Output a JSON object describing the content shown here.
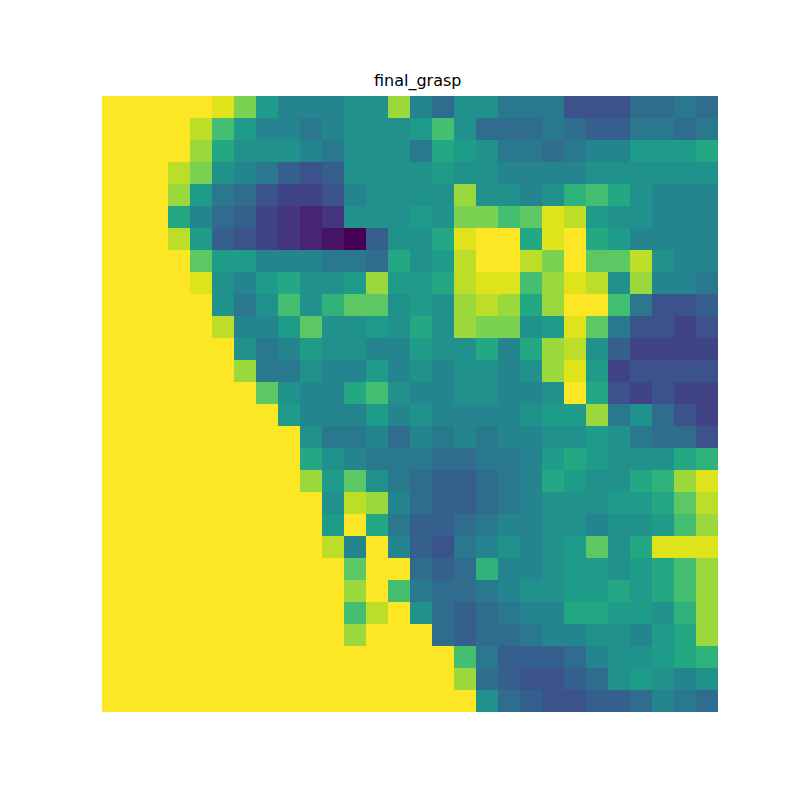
{
  "chart_data": {
    "type": "heatmap",
    "title": "final_grasp",
    "color": "Viridis",
    "tick_labels": false,
    "zlim": [
      0,
      1
    ],
    "cells": [
      [
        1,
        1,
        1,
        1,
        1,
        0.95,
        0.8,
        0.55,
        0.45,
        0.45,
        0.45,
        0.5,
        0.5,
        0.85,
        0.45,
        0.35,
        0.5,
        0.5,
        0.4,
        0.4,
        0.4,
        0.25,
        0.25,
        0.25,
        0.35,
        0.35,
        0.4,
        0.35
      ],
      [
        1,
        1,
        1,
        1,
        0.9,
        0.7,
        0.55,
        0.45,
        0.45,
        0.4,
        0.45,
        0.5,
        0.5,
        0.5,
        0.55,
        0.7,
        0.5,
        0.35,
        0.35,
        0.35,
        0.4,
        0.35,
        0.3,
        0.3,
        0.4,
        0.4,
        0.35,
        0.4
      ],
      [
        1,
        1,
        1,
        1,
        0.85,
        0.6,
        0.5,
        0.5,
        0.5,
        0.45,
        0.4,
        0.5,
        0.5,
        0.5,
        0.4,
        0.6,
        0.55,
        0.5,
        0.4,
        0.4,
        0.35,
        0.4,
        0.45,
        0.45,
        0.55,
        0.55,
        0.55,
        0.6
      ],
      [
        1,
        1,
        1,
        0.9,
        0.8,
        0.5,
        0.45,
        0.4,
        0.3,
        0.25,
        0.3,
        0.5,
        0.5,
        0.5,
        0.5,
        0.55,
        0.5,
        0.5,
        0.45,
        0.45,
        0.45,
        0.45,
        0.5,
        0.5,
        0.5,
        0.5,
        0.5,
        0.5
      ],
      [
        1,
        1,
        1,
        0.85,
        0.55,
        0.4,
        0.35,
        0.25,
        0.2,
        0.2,
        0.25,
        0.45,
        0.5,
        0.5,
        0.5,
        0.5,
        0.85,
        0.5,
        0.5,
        0.45,
        0.5,
        0.65,
        0.7,
        0.6,
        0.5,
        0.45,
        0.45,
        0.45
      ],
      [
        1,
        1,
        1,
        0.6,
        0.45,
        0.35,
        0.3,
        0.2,
        0.15,
        0.1,
        0.15,
        0.5,
        0.5,
        0.5,
        0.55,
        0.5,
        0.8,
        0.8,
        0.7,
        0.75,
        0.95,
        0.9,
        0.55,
        0.5,
        0.5,
        0.45,
        0.45,
        0.45
      ],
      [
        1,
        1,
        1,
        0.9,
        0.55,
        0.3,
        0.25,
        0.2,
        0.15,
        0.1,
        0.05,
        0.0,
        0.3,
        0.5,
        0.5,
        0.6,
        0.95,
        1,
        1,
        0.6,
        0.95,
        1,
        0.6,
        0.55,
        0.45,
        0.45,
        0.45,
        0.45
      ],
      [
        1,
        1,
        1,
        1,
        0.75,
        0.55,
        0.55,
        0.45,
        0.45,
        0.45,
        0.4,
        0.4,
        0.35,
        0.6,
        0.5,
        0.55,
        0.9,
        1,
        1,
        0.9,
        0.8,
        1,
        0.75,
        0.75,
        0.9,
        0.5,
        0.45,
        0.45
      ],
      [
        1,
        1,
        1,
        1,
        0.95,
        0.5,
        0.45,
        0.55,
        0.6,
        0.5,
        0.5,
        0.55,
        0.85,
        0.55,
        0.55,
        0.6,
        0.9,
        0.95,
        0.95,
        0.7,
        0.85,
        0.95,
        0.9,
        0.5,
        0.85,
        0.45,
        0.45,
        0.4
      ],
      [
        1,
        1,
        1,
        1,
        1,
        0.5,
        0.4,
        0.5,
        0.7,
        0.5,
        0.65,
        0.75,
        0.75,
        0.5,
        0.55,
        0.5,
        0.85,
        0.9,
        0.85,
        0.6,
        0.85,
        1,
        1,
        0.7,
        0.4,
        0.25,
        0.25,
        0.3
      ],
      [
        1,
        1,
        1,
        1,
        1,
        0.9,
        0.45,
        0.45,
        0.55,
        0.75,
        0.5,
        0.5,
        0.55,
        0.5,
        0.6,
        0.5,
        0.85,
        0.8,
        0.8,
        0.5,
        0.55,
        0.95,
        0.75,
        0.4,
        0.25,
        0.25,
        0.2,
        0.25
      ],
      [
        1,
        1,
        1,
        1,
        1,
        1,
        0.5,
        0.4,
        0.45,
        0.55,
        0.5,
        0.5,
        0.45,
        0.45,
        0.55,
        0.5,
        0.5,
        0.6,
        0.45,
        0.6,
        0.85,
        0.9,
        0.5,
        0.3,
        0.2,
        0.2,
        0.2,
        0.2
      ],
      [
        1,
        1,
        1,
        1,
        1,
        1,
        0.85,
        0.4,
        0.4,
        0.5,
        0.45,
        0.45,
        0.55,
        0.45,
        0.5,
        0.45,
        0.5,
        0.5,
        0.45,
        0.5,
        0.85,
        0.95,
        0.55,
        0.2,
        0.25,
        0.25,
        0.25,
        0.25
      ],
      [
        1,
        1,
        1,
        1,
        1,
        1,
        1,
        0.75,
        0.5,
        0.45,
        0.45,
        0.6,
        0.7,
        0.5,
        0.45,
        0.45,
        0.5,
        0.5,
        0.45,
        0.45,
        0.5,
        1,
        0.6,
        0.25,
        0.2,
        0.25,
        0.2,
        0.2
      ],
      [
        1,
        1,
        1,
        1,
        1,
        1,
        1,
        1,
        0.55,
        0.45,
        0.45,
        0.45,
        0.55,
        0.45,
        0.5,
        0.45,
        0.45,
        0.45,
        0.45,
        0.5,
        0.55,
        0.55,
        0.85,
        0.4,
        0.5,
        0.35,
        0.25,
        0.2
      ],
      [
        1,
        1,
        1,
        1,
        1,
        1,
        1,
        1,
        1,
        0.5,
        0.4,
        0.4,
        0.45,
        0.35,
        0.45,
        0.4,
        0.45,
        0.4,
        0.45,
        0.45,
        0.5,
        0.5,
        0.55,
        0.5,
        0.4,
        0.35,
        0.35,
        0.25
      ],
      [
        1,
        1,
        1,
        1,
        1,
        1,
        1,
        1,
        1,
        0.6,
        0.5,
        0.45,
        0.4,
        0.4,
        0.4,
        0.35,
        0.35,
        0.4,
        0.4,
        0.45,
        0.55,
        0.6,
        0.55,
        0.5,
        0.5,
        0.5,
        0.6,
        0.65
      ],
      [
        1,
        1,
        1,
        1,
        1,
        1,
        1,
        1,
        1,
        0.85,
        0.55,
        0.75,
        0.5,
        0.4,
        0.35,
        0.3,
        0.3,
        0.35,
        0.4,
        0.45,
        0.6,
        0.55,
        0.5,
        0.5,
        0.6,
        0.65,
        0.85,
        0.95
      ],
      [
        1,
        1,
        1,
        1,
        1,
        1,
        1,
        1,
        1,
        1,
        0.5,
        0.9,
        0.85,
        0.45,
        0.35,
        0.3,
        0.3,
        0.35,
        0.4,
        0.45,
        0.5,
        0.5,
        0.5,
        0.55,
        0.55,
        0.6,
        0.75,
        0.9
      ],
      [
        1,
        1,
        1,
        1,
        1,
        1,
        1,
        1,
        1,
        1,
        0.55,
        1,
        0.6,
        0.4,
        0.3,
        0.3,
        0.35,
        0.4,
        0.45,
        0.45,
        0.5,
        0.5,
        0.45,
        0.5,
        0.5,
        0.55,
        0.7,
        0.85
      ],
      [
        1,
        1,
        1,
        1,
        1,
        1,
        1,
        1,
        1,
        1,
        0.9,
        0.45,
        1,
        0.45,
        0.3,
        0.25,
        0.4,
        0.45,
        0.5,
        0.45,
        0.5,
        0.55,
        0.75,
        0.5,
        0.6,
        0.95,
        0.95,
        0.95
      ],
      [
        1,
        1,
        1,
        1,
        1,
        1,
        1,
        1,
        1,
        1,
        1,
        0.75,
        1,
        1,
        0.35,
        0.3,
        0.35,
        0.65,
        0.45,
        0.45,
        0.5,
        0.55,
        0.55,
        0.5,
        0.55,
        0.6,
        0.7,
        0.85
      ],
      [
        1,
        1,
        1,
        1,
        1,
        1,
        1,
        1,
        1,
        1,
        1,
        0.85,
        1,
        0.7,
        0.4,
        0.35,
        0.35,
        0.4,
        0.45,
        0.5,
        0.5,
        0.55,
        0.55,
        0.6,
        0.55,
        0.6,
        0.7,
        0.85
      ],
      [
        1,
        1,
        1,
        1,
        1,
        1,
        1,
        1,
        1,
        1,
        1,
        0.7,
        0.9,
        1,
        0.5,
        0.35,
        0.3,
        0.35,
        0.4,
        0.45,
        0.45,
        0.6,
        0.6,
        0.55,
        0.55,
        0.5,
        0.65,
        0.85
      ],
      [
        1,
        1,
        1,
        1,
        1,
        1,
        1,
        1,
        1,
        1,
        1,
        0.85,
        1,
        1,
        1,
        0.35,
        0.3,
        0.35,
        0.35,
        0.4,
        0.45,
        0.45,
        0.5,
        0.5,
        0.45,
        0.55,
        0.6,
        0.85
      ],
      [
        1,
        1,
        1,
        1,
        1,
        1,
        1,
        1,
        1,
        1,
        1,
        1,
        1,
        1,
        1,
        1,
        0.7,
        0.4,
        0.3,
        0.3,
        0.3,
        0.35,
        0.45,
        0.5,
        0.5,
        0.55,
        0.6,
        0.65
      ],
      [
        1,
        1,
        1,
        1,
        1,
        1,
        1,
        1,
        1,
        1,
        1,
        1,
        1,
        1,
        1,
        1,
        0.85,
        0.35,
        0.3,
        0.25,
        0.25,
        0.3,
        0.35,
        0.5,
        0.55,
        0.5,
        0.45,
        0.5
      ],
      [
        1,
        1,
        1,
        1,
        1,
        1,
        1,
        1,
        1,
        1,
        1,
        1,
        1,
        1,
        1,
        1,
        1,
        0.5,
        0.35,
        0.3,
        0.25,
        0.25,
        0.3,
        0.3,
        0.35,
        0.45,
        0.4,
        0.35
      ]
    ]
  }
}
